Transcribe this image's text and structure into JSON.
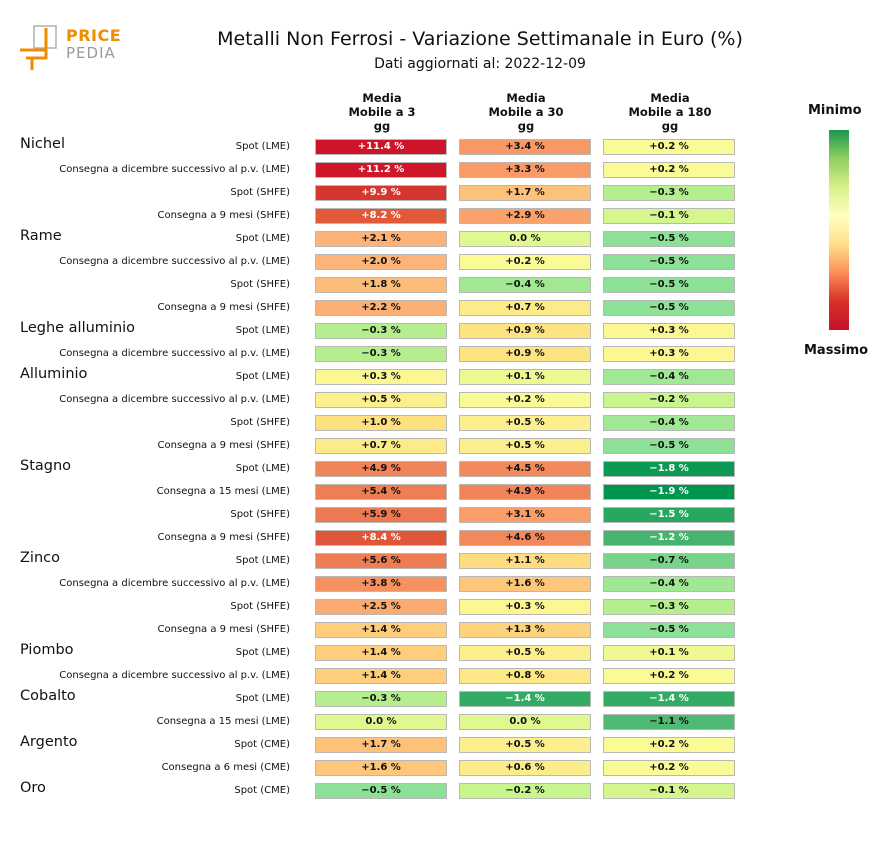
{
  "brand": {
    "name_top": "PRICE",
    "name_bottom": "PEDIA",
    "accent_color": "#f08c00"
  },
  "title": "Metalli Non Ferrosi - Variazione Settimanale in Euro (%)",
  "subtitle": "Dati aggiornati al: 2022-12-09",
  "legend": {
    "min_label": "Minimo",
    "max_label": "Massimo",
    "min_color": "#1a9850",
    "max_color": "#c8102e"
  },
  "chart_data": {
    "type": "heatmap",
    "title": "Metalli Non Ferrosi - Variazione Settimanale in Euro (%)",
    "subtitle": "Dati aggiornati al: 2022-12-09",
    "columns": [
      [
        "Media",
        "Mobile a 3",
        "gg"
      ],
      [
        "Media",
        "Mobile a 30",
        "gg"
      ],
      [
        "Media",
        "Mobile a 180",
        "gg"
      ]
    ],
    "unit": "%",
    "groups": [
      {
        "name": "Nichel",
        "rows": [
          {
            "label": "Spot (LME)",
            "values": [
              11.4,
              3.4,
              0.2
            ]
          },
          {
            "label": "Consegna a dicembre successivo al p.v. (LME)",
            "values": [
              11.2,
              3.3,
              0.2
            ]
          },
          {
            "label": "Spot (SHFE)",
            "values": [
              9.9,
              1.7,
              -0.3
            ]
          },
          {
            "label": "Consegna a 9 mesi (SHFE)",
            "values": [
              8.2,
              2.9,
              -0.1
            ]
          }
        ]
      },
      {
        "name": "Rame",
        "rows": [
          {
            "label": "Spot (LME)",
            "values": [
              2.1,
              0.0,
              -0.5
            ]
          },
          {
            "label": "Consegna a dicembre successivo al p.v. (LME)",
            "values": [
              2.0,
              0.2,
              -0.5
            ]
          },
          {
            "label": "Spot (SHFE)",
            "values": [
              1.8,
              -0.4,
              -0.5
            ]
          },
          {
            "label": "Consegna a 9 mesi (SHFE)",
            "values": [
              2.2,
              0.7,
              -0.5
            ]
          }
        ]
      },
      {
        "name": "Leghe alluminio",
        "rows": [
          {
            "label": "Spot (LME)",
            "values": [
              -0.3,
              0.9,
              0.3
            ]
          },
          {
            "label": "Consegna a dicembre successivo al p.v. (LME)",
            "values": [
              -0.3,
              0.9,
              0.3
            ]
          }
        ]
      },
      {
        "name": "Alluminio",
        "rows": [
          {
            "label": "Spot (LME)",
            "values": [
              0.3,
              0.1,
              -0.4
            ]
          },
          {
            "label": "Consegna a dicembre successivo al p.v. (LME)",
            "values": [
              0.5,
              0.2,
              -0.2
            ]
          },
          {
            "label": "Spot (SHFE)",
            "values": [
              1.0,
              0.5,
              -0.4
            ]
          },
          {
            "label": "Consegna a 9 mesi (SHFE)",
            "values": [
              0.7,
              0.5,
              -0.5
            ]
          }
        ]
      },
      {
        "name": "Stagno",
        "rows": [
          {
            "label": "Spot (LME)",
            "values": [
              4.9,
              4.5,
              -1.8
            ]
          },
          {
            "label": "Consegna a 15 mesi (LME)",
            "values": [
              5.4,
              4.9,
              -1.9
            ]
          },
          {
            "label": "Spot (SHFE)",
            "values": [
              5.9,
              3.1,
              -1.5
            ]
          },
          {
            "label": "Consegna a 9 mesi (SHFE)",
            "values": [
              8.4,
              4.6,
              -1.2
            ]
          }
        ]
      },
      {
        "name": "Zinco",
        "rows": [
          {
            "label": "Spot (LME)",
            "values": [
              5.6,
              1.1,
              -0.7
            ]
          },
          {
            "label": "Consegna a dicembre successivo al p.v. (LME)",
            "values": [
              3.8,
              1.6,
              -0.4
            ]
          },
          {
            "label": "Spot (SHFE)",
            "values": [
              2.5,
              0.3,
              -0.3
            ]
          },
          {
            "label": "Consegna a 9 mesi (SHFE)",
            "values": [
              1.4,
              1.3,
              -0.5
            ]
          }
        ]
      },
      {
        "name": "Piombo",
        "rows": [
          {
            "label": "Spot (LME)",
            "values": [
              1.4,
              0.5,
              0.1
            ]
          },
          {
            "label": "Consegna a dicembre successivo al p.v. (LME)",
            "values": [
              1.4,
              0.8,
              0.2
            ]
          }
        ]
      },
      {
        "name": "Cobalto",
        "rows": [
          {
            "label": "Spot (LME)",
            "values": [
              -0.3,
              -1.4,
              -1.4
            ]
          },
          {
            "label": "Consegna a 15 mesi (LME)",
            "values": [
              0.0,
              0.0,
              -1.1
            ]
          }
        ]
      },
      {
        "name": "Argento",
        "rows": [
          {
            "label": "Spot (CME)",
            "values": [
              1.7,
              0.5,
              0.2
            ]
          },
          {
            "label": "Consegna a 6 mesi (CME)",
            "values": [
              1.6,
              0.6,
              0.2
            ]
          }
        ]
      },
      {
        "name": "Oro",
        "rows": [
          {
            "label": "Spot (CME)",
            "values": [
              -0.5,
              -0.2,
              -0.1
            ]
          }
        ]
      }
    ]
  }
}
